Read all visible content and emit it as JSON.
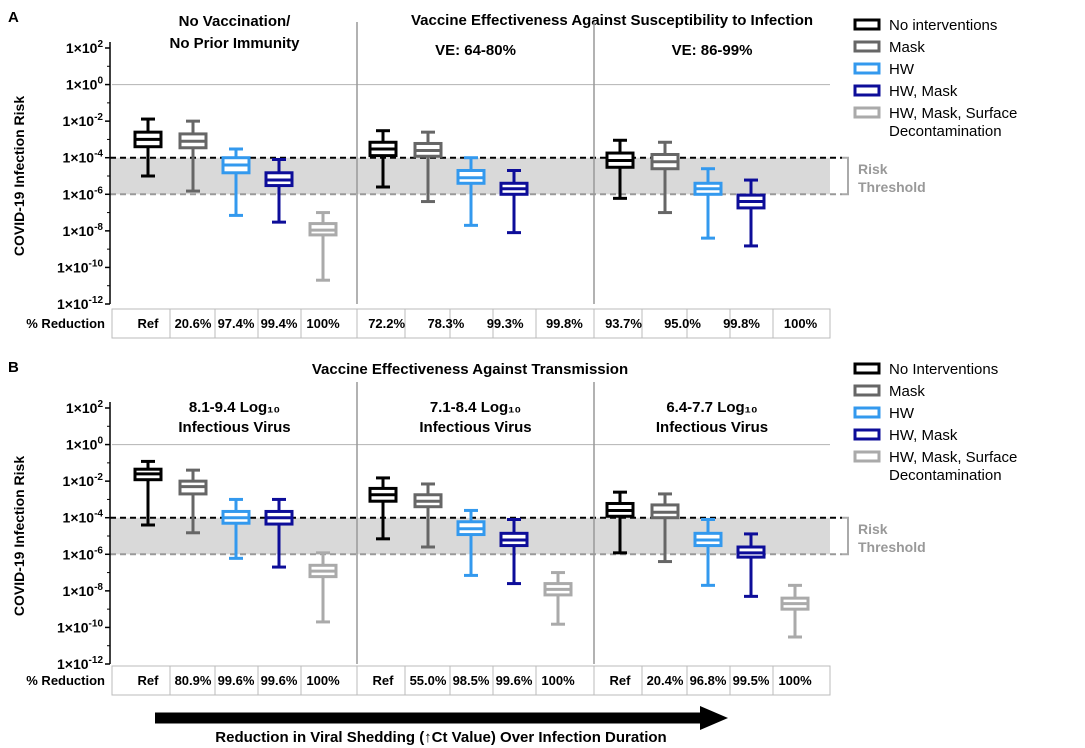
{
  "figure": {
    "panel_labels": [
      "A",
      "B"
    ],
    "ylabel": "COVID-19 Infection Risk",
    "reduction_label": "% Reduction",
    "arrow_label": "Reduction in Viral Shedding (↑Ct Value) Over Infection Duration",
    "risk_threshold_label": [
      "Risk",
      "Threshold"
    ],
    "ytick_labels": [
      {
        "mant": "1×10",
        "exp": "2"
      },
      {
        "mant": "1×10",
        "exp": "0"
      },
      {
        "mant": "1×10",
        "exp": "-2"
      },
      {
        "mant": "1×10",
        "exp": "-4"
      },
      {
        "mant": "1×10",
        "exp": "-6"
      },
      {
        "mant": "1×10",
        "exp": "-8"
      },
      {
        "mant": "1×10",
        "exp": "-10"
      },
      {
        "mant": "1×10",
        "exp": "-12"
      }
    ]
  },
  "chart_data": [
    {
      "type": "boxplot",
      "panel": "A",
      "super_title": "Vaccine Effectiveness Against Susceptibility to Infection",
      "yscale": "log10",
      "ylim": [
        1e-12,
        100
      ],
      "ylabel": "COVID-19 Infection Risk",
      "risk_threshold": [
        1e-06,
        0.0001
      ],
      "colors": [
        "#000000",
        "#666666",
        "#3399ee",
        "#0d0d99",
        "#aaaaaa"
      ],
      "legend": {
        "placement": "right",
        "entries": [
          "No interventions",
          "Mask",
          "HW",
          "HW, Mask",
          "HW, Mask, Surface Decontamination"
        ],
        "entry_lines": [
          [
            "No interventions"
          ],
          [
            "Mask"
          ],
          [
            "HW"
          ],
          [
            "HW, Mask"
          ],
          [
            "HW, Mask, Surface",
            "Decontamination"
          ]
        ]
      },
      "groups": [
        {
          "title_lines": [
            "No Vaccination/",
            "No Prior Immunity"
          ],
          "boxes": [
            {
              "whisker_low": 1e-05,
              "q1": 0.0004,
              "median": 0.001,
              "q3": 0.0025,
              "whisker_high": 0.013
            },
            {
              "whisker_low": 1.5e-06,
              "q1": 0.00035,
              "median": 0.0008,
              "q3": 0.002,
              "whisker_high": 0.01
            },
            {
              "whisker_low": 7e-08,
              "q1": 1.5e-05,
              "median": 4e-05,
              "q3": 0.0001,
              "whisker_high": 0.0003
            },
            {
              "whisker_low": 3e-08,
              "q1": 3e-06,
              "median": 6e-06,
              "q3": 1.5e-05,
              "whisker_high": 8e-05
            },
            {
              "whisker_low": 2e-11,
              "q1": 6e-09,
              "median": 1.1e-08,
              "q3": 2.5e-08,
              "whisker_high": 1e-07
            }
          ],
          "reductions": [
            "Ref",
            "20.6%",
            "97.4%",
            "99.4%",
            "100%"
          ]
        },
        {
          "title_lines": [
            "VE: 64-80%"
          ],
          "boxes": [
            {
              "whisker_low": 2.5e-06,
              "q1": 0.00013,
              "median": 0.0003,
              "q3": 0.0007,
              "whisker_high": 0.003
            },
            {
              "whisker_low": 4e-07,
              "q1": 0.00012,
              "median": 0.00025,
              "q3": 0.0006,
              "whisker_high": 0.0025
            },
            {
              "whisker_low": 2e-08,
              "q1": 4e-06,
              "median": 8e-06,
              "q3": 2e-05,
              "whisker_high": 0.0001
            },
            {
              "whisker_low": 8e-09,
              "q1": 1e-06,
              "median": 2e-06,
              "q3": 4e-06,
              "whisker_high": 2e-05
            },
            null
          ],
          "reductions": [
            "72.2%",
            "78.3%",
            "99.3%",
            "99.8%",
            ""
          ]
        },
        {
          "title_lines": [
            "VE: 86-99%"
          ],
          "boxes": [
            {
              "whisker_low": 6e-07,
              "q1": 3e-05,
              "median": 7e-05,
              "q3": 0.00018,
              "whisker_high": 0.0009
            },
            {
              "whisker_low": 1e-07,
              "q1": 2.5e-05,
              "median": 6e-05,
              "q3": 0.00015,
              "whisker_high": 0.0007
            },
            {
              "whisker_low": 4e-09,
              "q1": 1e-06,
              "median": 2e-06,
              "q3": 4e-06,
              "whisker_high": 2.5e-05
            },
            {
              "whisker_low": 1.5e-09,
              "q1": 1.8e-07,
              "median": 4e-07,
              "q3": 9e-07,
              "whisker_high": 6e-06
            },
            null
          ],
          "reductions": [
            "93.7%",
            "95.0%",
            "99.8%",
            "100%",
            ""
          ]
        }
      ]
    },
    {
      "type": "boxplot",
      "panel": "B",
      "super_title": "Vaccine Effectiveness Against Transmission",
      "yscale": "log10",
      "ylim": [
        1e-12,
        100
      ],
      "ylabel": "COVID-19 Infection Risk",
      "risk_threshold": [
        1e-06,
        0.0001
      ],
      "colors": [
        "#000000",
        "#666666",
        "#3399ee",
        "#0d0d99",
        "#aaaaaa"
      ],
      "legend": {
        "placement": "right",
        "entries": [
          "No Interventions",
          "Mask",
          "HW",
          "HW, Mask",
          "HW, Mask, Surface Decontamination"
        ],
        "entry_lines": [
          [
            "No Interventions"
          ],
          [
            "Mask"
          ],
          [
            "HW"
          ],
          [
            "HW, Mask"
          ],
          [
            "HW, Mask, Surface",
            "Decontamination"
          ]
        ]
      },
      "groups": [
        {
          "title_lines": [
            "8.1-9.4 Log₁₀",
            "Infectious Virus"
          ],
          "boxes": [
            {
              "whisker_low": 4e-05,
              "q1": 0.012,
              "median": 0.025,
              "q3": 0.045,
              "whisker_high": 0.12
            },
            {
              "whisker_low": 1.5e-05,
              "q1": 0.002,
              "median": 0.005,
              "q3": 0.01,
              "whisker_high": 0.04
            },
            {
              "whisker_low": 6e-07,
              "q1": 5e-05,
              "median": 0.0001,
              "q3": 0.00022,
              "whisker_high": 0.001
            },
            {
              "whisker_low": 2e-07,
              "q1": 4.5e-05,
              "median": 0.0001,
              "q3": 0.00022,
              "whisker_high": 0.001
            },
            {
              "whisker_low": 2e-10,
              "q1": 6e-08,
              "median": 1.2e-07,
              "q3": 2.5e-07,
              "whisker_high": 1.2e-06
            }
          ],
          "reductions": [
            "Ref",
            "80.9%",
            "99.6%",
            "99.6%",
            "100%"
          ]
        },
        {
          "title_lines": [
            "7.1-8.4 Log₁₀",
            "Infectious Virus"
          ],
          "boxes": [
            {
              "whisker_low": 7e-06,
              "q1": 0.0008,
              "median": 0.0018,
              "q3": 0.004,
              "whisker_high": 0.015
            },
            {
              "whisker_low": 2.5e-06,
              "q1": 0.0004,
              "median": 0.0008,
              "q3": 0.0018,
              "whisker_high": 0.007
            },
            {
              "whisker_low": 7e-08,
              "q1": 1.2e-05,
              "median": 2.5e-05,
              "q3": 6e-05,
              "whisker_high": 0.00025
            },
            {
              "whisker_low": 2.5e-08,
              "q1": 3e-06,
              "median": 6e-06,
              "q3": 1.4e-05,
              "whisker_high": 8e-05
            },
            {
              "whisker_low": 1.5e-10,
              "q1": 6e-09,
              "median": 1.2e-08,
              "q3": 2.5e-08,
              "whisker_high": 1e-07
            }
          ],
          "reductions": [
            "Ref",
            "55.0%",
            "98.5%",
            "99.6%",
            "100%"
          ]
        },
        {
          "title_lines": [
            "6.4-7.7 Log₁₀",
            "Infectious Virus"
          ],
          "boxes": [
            {
              "whisker_low": 1.2e-06,
              "q1": 0.00012,
              "median": 0.00025,
              "q3": 0.0006,
              "whisker_high": 0.0025
            },
            {
              "whisker_low": 4e-07,
              "q1": 0.0001,
              "median": 0.0002,
              "q3": 0.0005,
              "whisker_high": 0.002
            },
            {
              "whisker_low": 2e-08,
              "q1": 3e-06,
              "median": 6e-06,
              "q3": 1.4e-05,
              "whisker_high": 8e-05
            },
            {
              "whisker_low": 5e-09,
              "q1": 7e-07,
              "median": 1.2e-06,
              "q3": 2.5e-06,
              "whisker_high": 1.3e-05
            },
            {
              "whisker_low": 3e-11,
              "q1": 1e-09,
              "median": 2e-09,
              "q3": 4e-09,
              "whisker_high": 2e-08
            }
          ],
          "reductions": [
            "Ref",
            "20.4%",
            "96.8%",
            "99.5%",
            "100%"
          ]
        }
      ]
    }
  ]
}
